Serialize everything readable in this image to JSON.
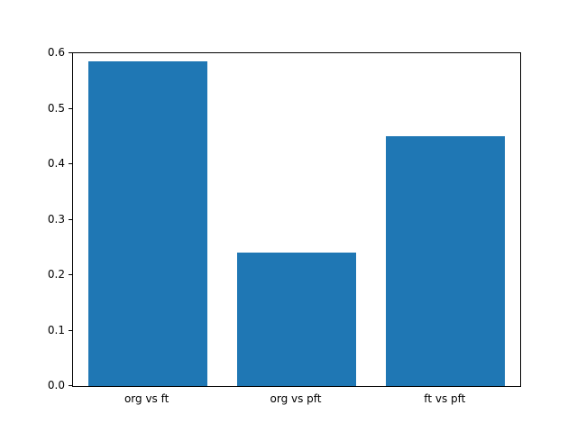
{
  "chart_data": {
    "type": "bar",
    "title": "",
    "xlabel": "",
    "ylabel": "",
    "categories": [
      "org vs ft",
      "org vs pft",
      "ft vs pft"
    ],
    "values": [
      0.585,
      0.241,
      0.451
    ],
    "ylim": [
      0.0,
      0.6
    ],
    "yticks": [
      0.0,
      0.1,
      0.2,
      0.3,
      0.4,
      0.5,
      0.6
    ],
    "ytick_decimals": 1,
    "bar_color": "#1f77b4",
    "axis_color": "#000000",
    "background_color": "#ffffff",
    "grid": false,
    "legend": "none",
    "bar_width_fraction": 0.8
  }
}
